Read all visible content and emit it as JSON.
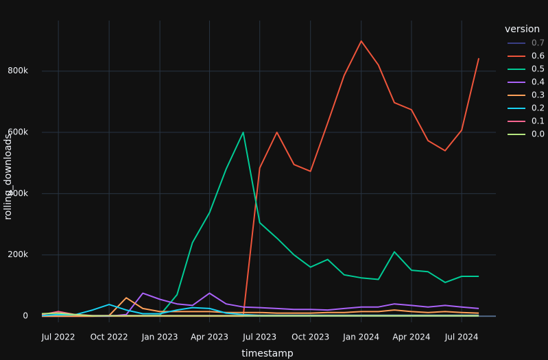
{
  "chart_data": {
    "type": "line",
    "x_label": "timestamp",
    "y_label": "rolling_downloads",
    "legend_title": "version",
    "x": [
      "2022-06",
      "2022-07",
      "2022-08",
      "2022-09",
      "2022-10",
      "2022-11",
      "2022-12",
      "2023-01",
      "2023-02",
      "2023-03",
      "2023-04",
      "2023-05",
      "2023-06",
      "2023-07",
      "2023-08",
      "2023-09",
      "2023-10",
      "2023-11",
      "2023-12",
      "2024-01",
      "2024-02",
      "2024-03",
      "2024-04",
      "2024-05",
      "2024-06",
      "2024-07",
      "2024-08"
    ],
    "xlim": [
      "2022-06",
      "2024-09"
    ],
    "xticks": [
      {
        "value": "2022-07",
        "label": "Jul 2022"
      },
      {
        "value": "2022-10",
        "label": "Oct 2022"
      },
      {
        "value": "2023-01",
        "label": "Jan 2023"
      },
      {
        "value": "2023-04",
        "label": "Apr 2023"
      },
      {
        "value": "2023-07",
        "label": "Jul 2023"
      },
      {
        "value": "2023-10",
        "label": "Oct 2023"
      },
      {
        "value": "2024-01",
        "label": "Jan 2024"
      },
      {
        "value": "2024-04",
        "label": "Apr 2024"
      },
      {
        "value": "2024-07",
        "label": "Jul 2024"
      }
    ],
    "ylim": [
      -20000,
      965000
    ],
    "yticks": [
      0,
      {
        "value": 200000,
        "label": "200k"
      },
      {
        "value": 400000,
        "label": "400k"
      },
      {
        "value": 600000,
        "label": "600k"
      },
      {
        "value": 800000,
        "label": "800k"
      }
    ],
    "grid": true,
    "series": [
      {
        "name": "0.7",
        "color": "#636efa",
        "visible": "legendonly"
      },
      {
        "name": "0.6",
        "color": "#ef553b",
        "values": [
          0,
          0,
          0,
          0,
          0,
          0,
          0,
          0,
          0,
          0,
          0,
          0,
          0,
          484000,
          600000,
          495000,
          473000,
          630000,
          786000,
          898000,
          820000,
          697000,
          674000,
          573000,
          540000,
          607000,
          842000
        ]
      },
      {
        "name": "0.5",
        "color": "#00cc96",
        "values": [
          2000,
          2000,
          2000,
          2000,
          2000,
          2000,
          2000,
          3000,
          70000,
          240000,
          338000,
          480000,
          600000,
          305000,
          255000,
          200000,
          160000,
          185000,
          135000,
          125000,
          120000,
          210000,
          150000,
          145000,
          110000,
          130000,
          130000
        ]
      },
      {
        "name": "0.4",
        "color": "#ab63fa",
        "values": [
          0,
          0,
          0,
          0,
          0,
          5000,
          75000,
          55000,
          40000,
          35000,
          75000,
          40000,
          30000,
          28000,
          25000,
          22000,
          22000,
          20000,
          25000,
          30000,
          30000,
          40000,
          35000,
          30000,
          35000,
          30000,
          25000
        ]
      },
      {
        "name": "0.3",
        "color": "#ffa15a",
        "values": [
          0,
          0,
          0,
          0,
          2000,
          60000,
          25000,
          15000,
          15000,
          15000,
          15000,
          12000,
          12000,
          12000,
          10000,
          10000,
          10000,
          12000,
          12000,
          15000,
          15000,
          20000,
          15000,
          12000,
          15000,
          12000,
          10000
        ]
      },
      {
        "name": "0.2",
        "color": "#19d3f3",
        "values": [
          2000,
          5000,
          5000,
          20000,
          38000,
          20000,
          8000,
          8000,
          20000,
          28000,
          25000,
          10000,
          5000,
          3000,
          3000,
          3000,
          3000,
          3000,
          3000,
          3000,
          3000,
          3000,
          3000,
          3000,
          3000,
          3000,
          3000
        ]
      },
      {
        "name": "0.1",
        "color": "#ff6692",
        "values": [
          5000,
          15000,
          5000,
          2000,
          2000,
          2000,
          2000,
          2000,
          2000,
          2000,
          2000,
          2000,
          2000,
          2000,
          2000,
          2000,
          2000,
          2000,
          2000,
          2000,
          2000,
          2000,
          2000,
          2000,
          2000,
          2000,
          2000
        ]
      },
      {
        "name": "0.0",
        "color": "#b6e880",
        "values": [
          8000,
          10000,
          5000,
          1000,
          1000,
          1000,
          1000,
          1000,
          1000,
          1000,
          1000,
          1000,
          1000,
          1000,
          1000,
          1000,
          1000,
          1000,
          1000,
          1000,
          1000,
          1000,
          1000,
          1000,
          1000,
          1000,
          1000
        ]
      }
    ]
  }
}
